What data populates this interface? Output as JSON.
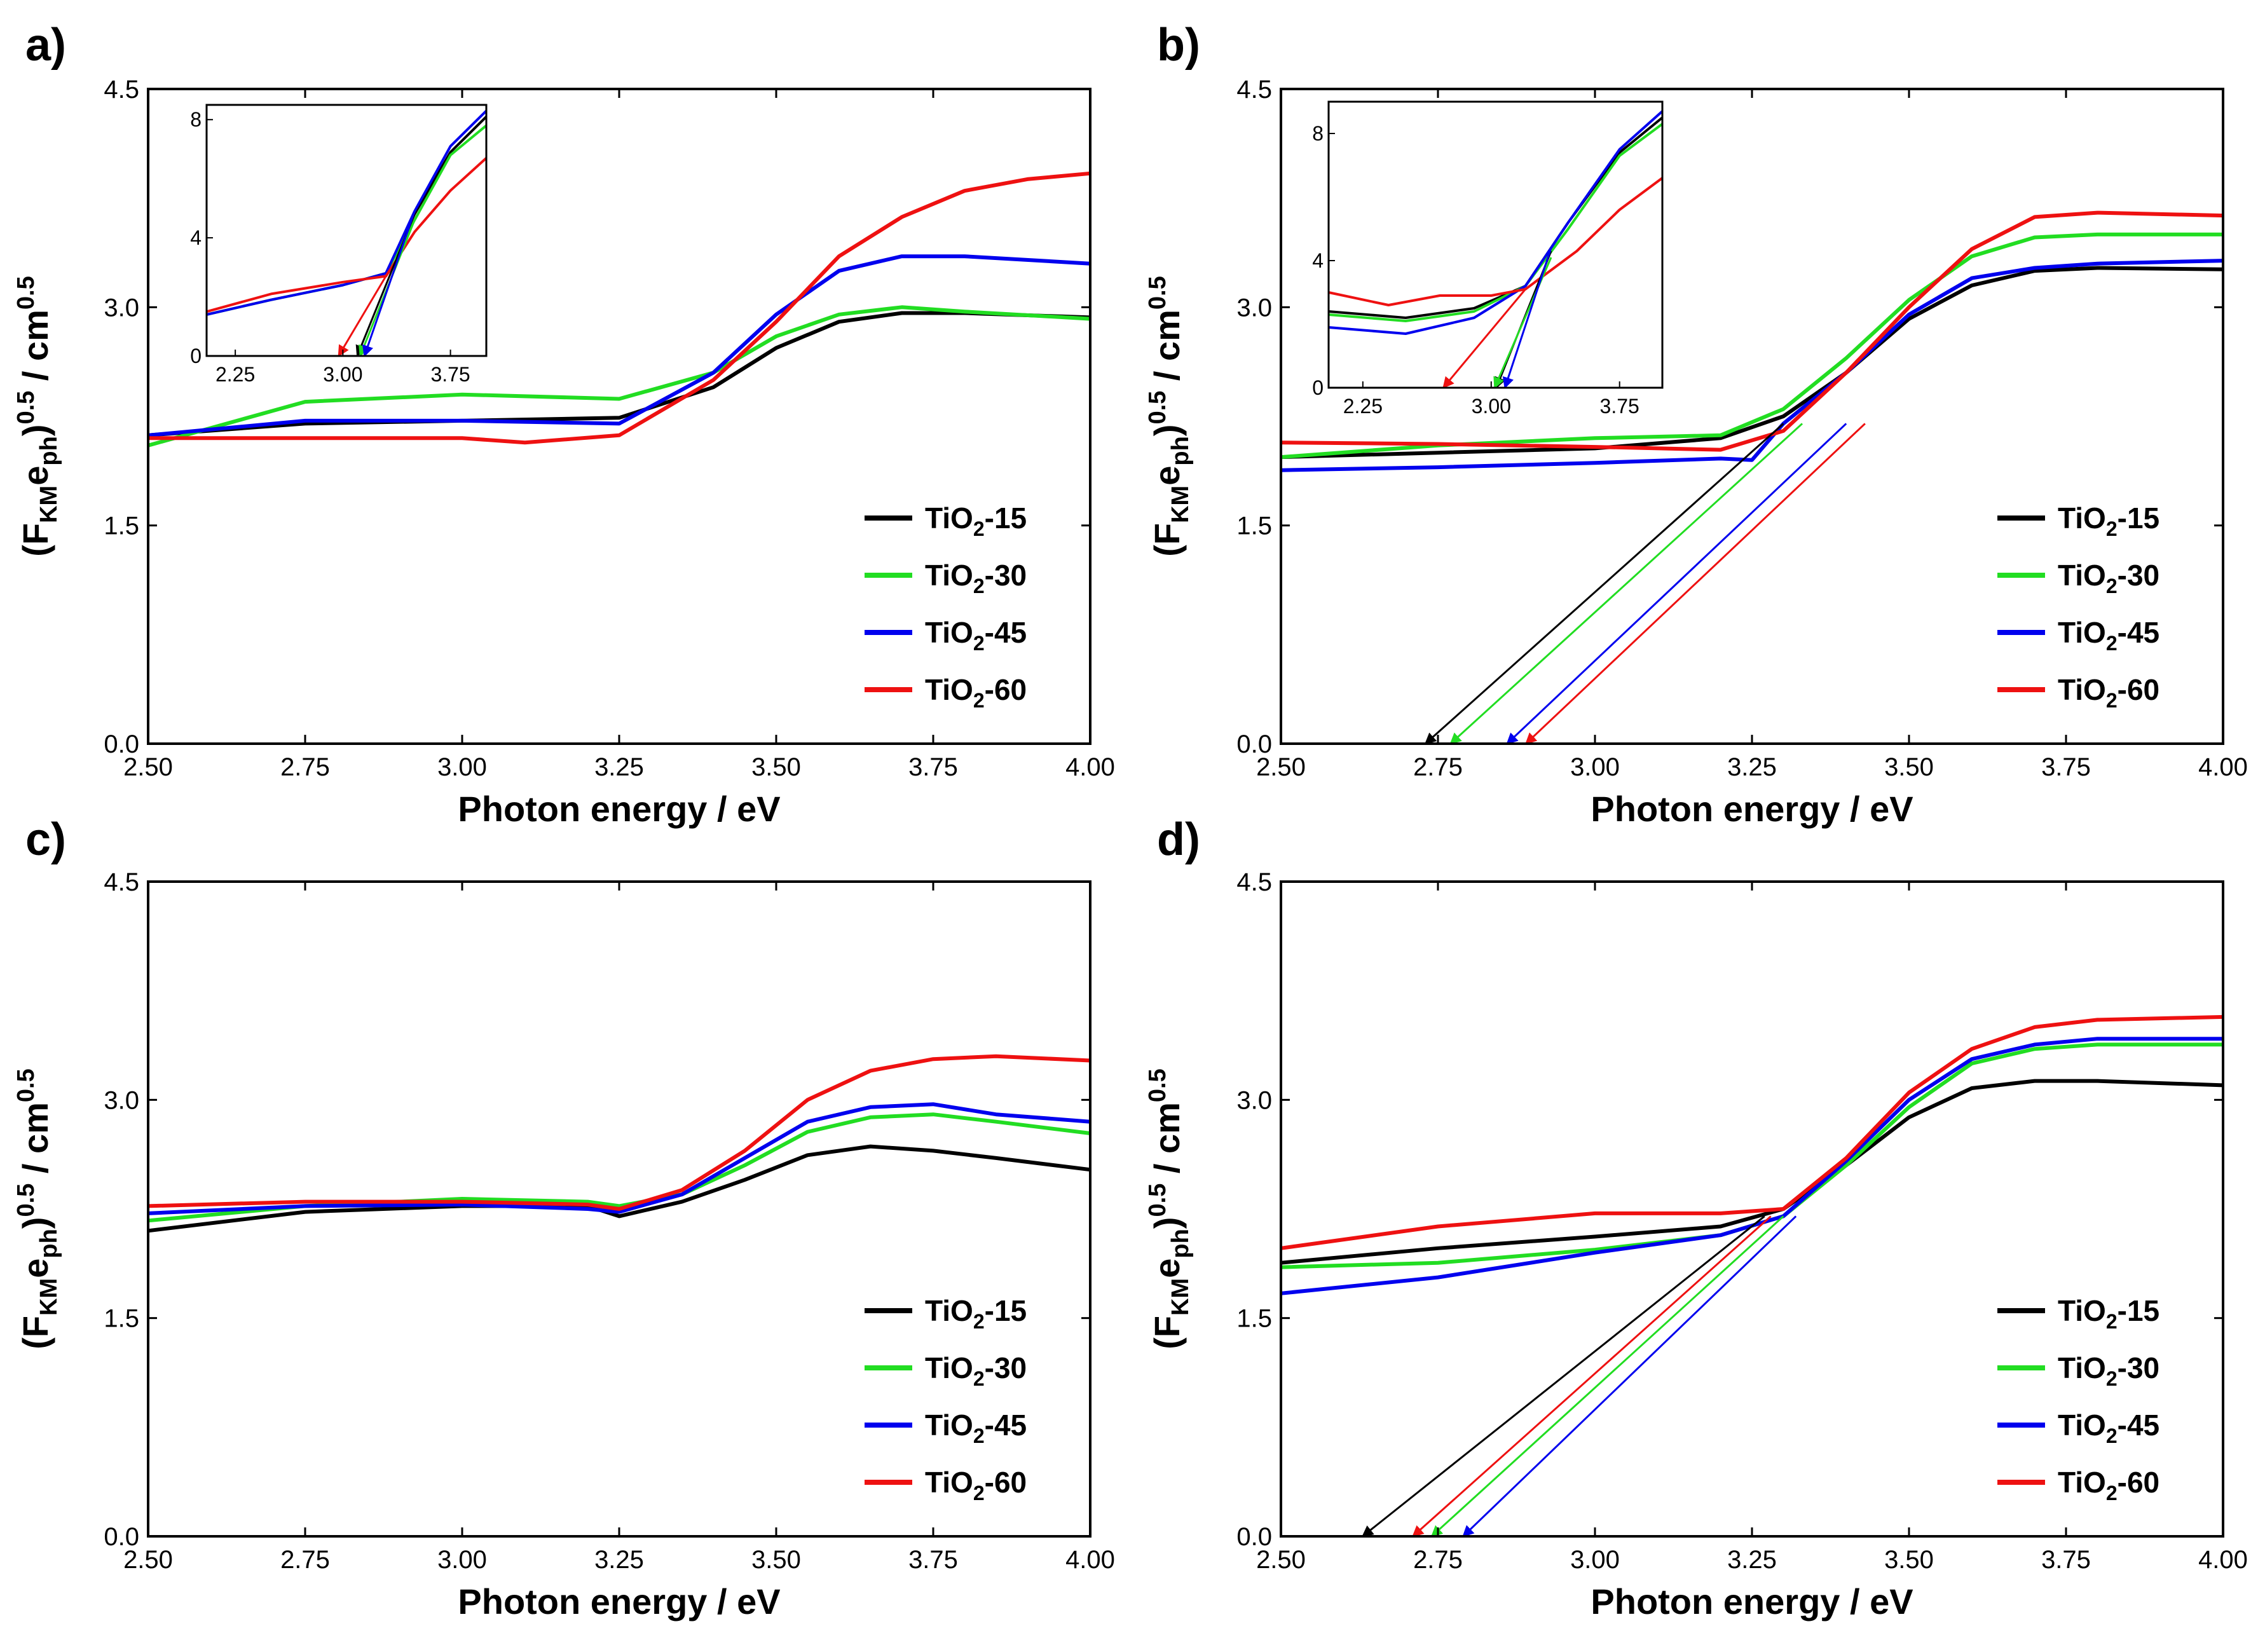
{
  "figure": {
    "series_names": [
      "TiO2-15",
      "TiO2-30",
      "TiO2-45",
      "TiO2-60"
    ],
    "colors": {
      "TiO2-15": "#000000",
      "TiO2-30": "#22dd22",
      "TiO2-45": "#0000ee",
      "TiO2-60": "#ee1111"
    }
  },
  "chart_data": [
    {
      "panel": "a)",
      "type": "line",
      "xlabel": "Photon energy / eV",
      "ylabel": "(FKMeph)0.5 / cm0.5",
      "xlim": [
        2.5,
        4.0
      ],
      "ylim": [
        0,
        4.5
      ],
      "xticks": [
        "2.50",
        "2.75",
        "3.00",
        "3.25",
        "3.50",
        "3.75",
        "4.00"
      ],
      "yticks": [
        "0.0",
        "1.5",
        "3.0",
        "4.5"
      ],
      "legend": [
        "TiO2-15",
        "TiO2-30",
        "TiO2-45",
        "TiO2-60"
      ],
      "series": [
        {
          "name": "TiO2-15",
          "x": [
            2.5,
            2.75,
            3.0,
            3.25,
            3.4,
            3.5,
            3.6,
            3.7,
            3.8,
            4.0
          ],
          "y": [
            2.12,
            2.2,
            2.22,
            2.24,
            2.45,
            2.72,
            2.9,
            2.96,
            2.96,
            2.93
          ]
        },
        {
          "name": "TiO2-30",
          "x": [
            2.5,
            2.75,
            3.0,
            3.25,
            3.4,
            3.5,
            3.6,
            3.7,
            3.8,
            4.0
          ],
          "y": [
            2.05,
            2.35,
            2.4,
            2.37,
            2.55,
            2.8,
            2.95,
            3.0,
            2.97,
            2.92
          ]
        },
        {
          "name": "TiO2-45",
          "x": [
            2.5,
            2.75,
            3.0,
            3.25,
            3.4,
            3.5,
            3.6,
            3.7,
            3.8,
            4.0
          ],
          "y": [
            2.12,
            2.22,
            2.22,
            2.2,
            2.55,
            2.95,
            3.25,
            3.35,
            3.35,
            3.3
          ]
        },
        {
          "name": "TiO2-60",
          "x": [
            2.5,
            2.75,
            3.0,
            3.1,
            3.25,
            3.4,
            3.5,
            3.6,
            3.7,
            3.8,
            3.9,
            4.0
          ],
          "y": [
            2.1,
            2.1,
            2.1,
            2.07,
            2.12,
            2.5,
            2.9,
            3.35,
            3.62,
            3.8,
            3.88,
            3.92
          ]
        }
      ],
      "inset": {
        "xlim": [
          2.05,
          4.0
        ],
        "ylim": [
          0,
          8.5
        ],
        "xticks": [
          "2.25",
          "3.00",
          "3.75"
        ],
        "yticks": [
          "0",
          "4",
          "8"
        ],
        "series": [
          {
            "name": "TiO2-15",
            "x": [
              2.05,
              2.5,
              3.0,
              3.3,
              3.5,
              3.75,
              4.0
            ],
            "y": [
              1.4,
              1.9,
              2.4,
              2.8,
              4.8,
              6.9,
              8.1
            ]
          },
          {
            "name": "TiO2-30",
            "x": [
              2.05,
              2.5,
              3.0,
              3.3,
              3.5,
              3.75,
              4.0
            ],
            "y": [
              1.4,
              1.9,
              2.4,
              2.8,
              4.6,
              6.8,
              7.8
            ]
          },
          {
            "name": "TiO2-45",
            "x": [
              2.05,
              2.5,
              3.0,
              3.3,
              3.5,
              3.75,
              4.0
            ],
            "y": [
              1.4,
              1.9,
              2.4,
              2.8,
              4.9,
              7.1,
              8.3
            ]
          },
          {
            "name": "TiO2-60",
            "x": [
              2.05,
              2.5,
              3.0,
              3.3,
              3.5,
              3.75,
              4.0
            ],
            "y": [
              1.5,
              2.1,
              2.5,
              2.7,
              4.2,
              5.6,
              6.7
            ]
          }
        ],
        "extrapolations": [
          {
            "name": "TiO2-15",
            "from": [
              3.5,
              4.8
            ],
            "to": [
              3.1,
              0.0
            ]
          },
          {
            "name": "TiO2-30",
            "from": [
              3.5,
              4.6
            ],
            "to": [
              3.12,
              0.0
            ]
          },
          {
            "name": "TiO2-45",
            "from": [
              3.5,
              4.9
            ],
            "to": [
              3.15,
              0.0
            ]
          },
          {
            "name": "TiO2-60",
            "from": [
              3.3,
              2.7
            ],
            "to": [
              2.97,
              0.0
            ]
          }
        ]
      }
    },
    {
      "panel": "b)",
      "type": "line",
      "xlabel": "Photon energy / eV",
      "ylabel": "(FKMeph)0.5 / cm0.5",
      "xlim": [
        2.5,
        4.0
      ],
      "ylim": [
        0,
        4.5
      ],
      "xticks": [
        "2.50",
        "2.75",
        "3.00",
        "3.25",
        "3.50",
        "3.75",
        "4.00"
      ],
      "yticks": [
        "0.0",
        "1.5",
        "3.0",
        "4.5"
      ],
      "legend": [
        "TiO2-15",
        "TiO2-30",
        "TiO2-45",
        "TiO2-60"
      ],
      "series": [
        {
          "name": "TiO2-15",
          "x": [
            2.5,
            2.75,
            3.0,
            3.2,
            3.3,
            3.4,
            3.5,
            3.6,
            3.7,
            3.8,
            4.0
          ],
          "y": [
            1.97,
            2.0,
            2.03,
            2.1,
            2.25,
            2.55,
            2.92,
            3.15,
            3.25,
            3.27,
            3.26
          ]
        },
        {
          "name": "TiO2-30",
          "x": [
            2.5,
            2.75,
            3.0,
            3.2,
            3.3,
            3.4,
            3.5,
            3.6,
            3.7,
            3.8,
            4.0
          ],
          "y": [
            1.97,
            2.05,
            2.1,
            2.12,
            2.3,
            2.65,
            3.05,
            3.35,
            3.48,
            3.5,
            3.5
          ]
        },
        {
          "name": "TiO2-45",
          "x": [
            2.5,
            2.75,
            3.0,
            3.2,
            3.25,
            3.3,
            3.4,
            3.5,
            3.6,
            3.7,
            3.8,
            4.0
          ],
          "y": [
            1.88,
            1.9,
            1.93,
            1.96,
            1.95,
            2.2,
            2.55,
            2.95,
            3.2,
            3.27,
            3.3,
            3.32
          ]
        },
        {
          "name": "TiO2-60",
          "x": [
            2.5,
            2.75,
            3.0,
            3.2,
            3.3,
            3.4,
            3.5,
            3.6,
            3.7,
            3.8,
            4.0
          ],
          "y": [
            2.07,
            2.06,
            2.04,
            2.02,
            2.15,
            2.55,
            3.0,
            3.4,
            3.62,
            3.65,
            3.63
          ]
        }
      ],
      "extrapolations": [
        {
          "name": "TiO2-15",
          "from": [
            3.3,
            2.2
          ],
          "to": [
            2.73,
            0.0
          ]
        },
        {
          "name": "TiO2-30",
          "from": [
            3.33,
            2.2
          ],
          "to": [
            2.77,
            0.0
          ]
        },
        {
          "name": "TiO2-45",
          "from": [
            3.4,
            2.2
          ],
          "to": [
            2.86,
            0.0
          ]
        },
        {
          "name": "TiO2-60",
          "from": [
            3.43,
            2.2
          ],
          "to": [
            2.89,
            0.0
          ]
        }
      ],
      "inset": {
        "xlim": [
          2.05,
          4.0
        ],
        "ylim": [
          0,
          9
        ],
        "xticks": [
          "2.25",
          "3.00",
          "3.75"
        ],
        "yticks": [
          "0",
          "4",
          "8"
        ],
        "series": [
          {
            "name": "TiO2-15",
            "x": [
              2.05,
              2.5,
              2.9,
              3.2,
              3.45,
              3.75,
              4.0
            ],
            "y": [
              2.4,
              2.2,
              2.5,
              3.2,
              5.2,
              7.4,
              8.5
            ]
          },
          {
            "name": "TiO2-30",
            "x": [
              2.05,
              2.5,
              2.9,
              3.2,
              3.45,
              3.75,
              4.0
            ],
            "y": [
              2.3,
              2.1,
              2.4,
              3.2,
              5.0,
              7.3,
              8.3
            ]
          },
          {
            "name": "TiO2-45",
            "x": [
              2.05,
              2.5,
              2.9,
              3.2,
              3.45,
              3.75,
              4.0
            ],
            "y": [
              1.9,
              1.7,
              2.2,
              3.2,
              5.2,
              7.5,
              8.7
            ]
          },
          {
            "name": "TiO2-60",
            "x": [
              2.05,
              2.4,
              2.7,
              3.0,
              3.2,
              3.5,
              3.75,
              4.0
            ],
            "y": [
              3.0,
              2.6,
              2.9,
              2.9,
              3.1,
              4.3,
              5.6,
              6.6
            ]
          }
        ],
        "extrapolations": [
          {
            "name": "TiO2-15",
            "from": [
              3.35,
              4.3
            ],
            "to": [
              3.03,
              0.0
            ]
          },
          {
            "name": "TiO2-30",
            "from": [
              3.35,
              4.1
            ],
            "to": [
              3.02,
              0.0
            ]
          },
          {
            "name": "TiO2-45",
            "from": [
              3.35,
              4.4
            ],
            "to": [
              3.08,
              0.0
            ]
          },
          {
            "name": "TiO2-60",
            "from": [
              3.2,
              3.1
            ],
            "to": [
              2.72,
              0.0
            ]
          }
        ]
      }
    },
    {
      "panel": "c)",
      "type": "line",
      "xlabel": "Photon energy / eV",
      "ylabel": "(FKMeph)0.5 / cm0.5",
      "xlim": [
        2.5,
        4.0
      ],
      "ylim": [
        0,
        4.5
      ],
      "xticks": [
        "2.50",
        "2.75",
        "3.00",
        "3.25",
        "3.50",
        "3.75",
        "4.00"
      ],
      "yticks": [
        "0.0",
        "1.5",
        "3.0",
        "4.5"
      ],
      "legend": [
        "TiO2-15",
        "TiO2-30",
        "TiO2-45",
        "TiO2-60"
      ],
      "series": [
        {
          "name": "TiO2-15",
          "x": [
            2.5,
            2.75,
            3.0,
            3.2,
            3.25,
            3.35,
            3.45,
            3.55,
            3.65,
            3.75,
            3.85,
            4.0
          ],
          "y": [
            2.1,
            2.23,
            2.27,
            2.27,
            2.2,
            2.3,
            2.45,
            2.62,
            2.68,
            2.65,
            2.6,
            2.52
          ]
        },
        {
          "name": "TiO2-30",
          "x": [
            2.5,
            2.75,
            3.0,
            3.2,
            3.25,
            3.35,
            3.45,
            3.55,
            3.65,
            3.75,
            3.85,
            4.0
          ],
          "y": [
            2.17,
            2.27,
            2.32,
            2.3,
            2.27,
            2.35,
            2.55,
            2.78,
            2.88,
            2.9,
            2.85,
            2.77
          ]
        },
        {
          "name": "TiO2-45",
          "x": [
            2.5,
            2.75,
            3.0,
            3.2,
            3.25,
            3.35,
            3.45,
            3.55,
            3.65,
            3.75,
            3.85,
            4.0
          ],
          "y": [
            2.22,
            2.27,
            2.28,
            2.25,
            2.23,
            2.35,
            2.6,
            2.85,
            2.95,
            2.97,
            2.9,
            2.85
          ]
        },
        {
          "name": "TiO2-60",
          "x": [
            2.5,
            2.75,
            3.0,
            3.2,
            3.25,
            3.35,
            3.45,
            3.55,
            3.65,
            3.75,
            3.85,
            4.0
          ],
          "y": [
            2.27,
            2.3,
            2.3,
            2.28,
            2.25,
            2.38,
            2.65,
            3.0,
            3.2,
            3.28,
            3.3,
            3.27
          ]
        }
      ]
    },
    {
      "panel": "d)",
      "type": "line",
      "xlabel": "Photon energy / eV",
      "ylabel": "(FKMeph)0.5 / cm0.5",
      "xlim": [
        2.5,
        4.0
      ],
      "ylim": [
        0,
        4.5
      ],
      "xticks": [
        "2.50",
        "2.75",
        "3.00",
        "3.25",
        "3.50",
        "3.75",
        "4.00"
      ],
      "yticks": [
        "0.0",
        "1.5",
        "3.0",
        "4.5"
      ],
      "legend": [
        "TiO2-15",
        "TiO2-30",
        "TiO2-45",
        "TiO2-60"
      ],
      "series": [
        {
          "name": "TiO2-15",
          "x": [
            2.5,
            2.75,
            3.0,
            3.2,
            3.3,
            3.4,
            3.5,
            3.6,
            3.7,
            3.8,
            4.0
          ],
          "y": [
            1.88,
            1.98,
            2.06,
            2.13,
            2.25,
            2.55,
            2.88,
            3.08,
            3.13,
            3.13,
            3.1
          ]
        },
        {
          "name": "TiO2-30",
          "x": [
            2.5,
            2.75,
            3.0,
            3.2,
            3.3,
            3.4,
            3.5,
            3.6,
            3.7,
            3.8,
            4.0
          ],
          "y": [
            1.85,
            1.88,
            1.97,
            2.07,
            2.2,
            2.55,
            2.95,
            3.25,
            3.35,
            3.38,
            3.38
          ]
        },
        {
          "name": "TiO2-45",
          "x": [
            2.5,
            2.75,
            3.0,
            3.2,
            3.3,
            3.4,
            3.5,
            3.6,
            3.7,
            3.8,
            4.0
          ],
          "y": [
            1.67,
            1.78,
            1.95,
            2.07,
            2.2,
            2.58,
            3.0,
            3.28,
            3.38,
            3.42,
            3.42
          ]
        },
        {
          "name": "TiO2-60",
          "x": [
            2.5,
            2.75,
            3.0,
            3.2,
            3.3,
            3.4,
            3.5,
            3.6,
            3.7,
            3.8,
            4.0
          ],
          "y": [
            1.98,
            2.13,
            2.22,
            2.22,
            2.25,
            2.6,
            3.05,
            3.35,
            3.5,
            3.55,
            3.57
          ]
        }
      ],
      "extrapolations": [
        {
          "name": "TiO2-15",
          "from": [
            3.27,
            2.2
          ],
          "to": [
            2.63,
            0.0
          ]
        },
        {
          "name": "TiO2-30",
          "from": [
            3.3,
            2.2
          ],
          "to": [
            2.74,
            0.0
          ]
        },
        {
          "name": "TiO2-45",
          "from": [
            3.32,
            2.2
          ],
          "to": [
            2.79,
            0.0
          ]
        },
        {
          "name": "TiO2-60",
          "from": [
            3.28,
            2.2
          ],
          "to": [
            2.71,
            0.0
          ]
        }
      ]
    }
  ]
}
